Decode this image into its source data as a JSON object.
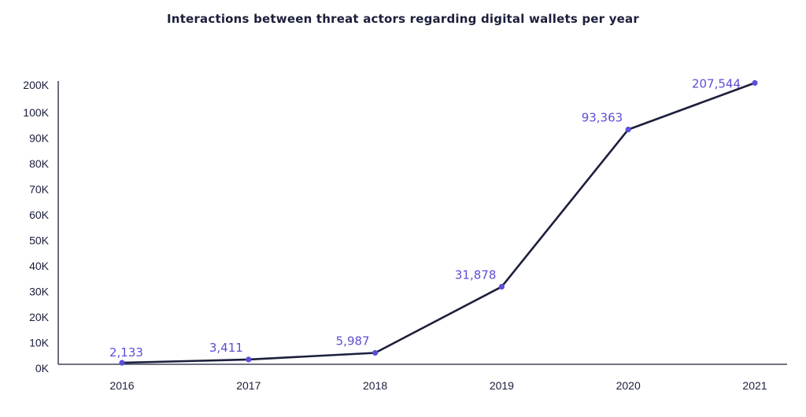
{
  "chart_data": {
    "type": "line",
    "title": "Interactions between threat actors regarding digital wallets per year",
    "xlabel": "",
    "ylabel": "",
    "x": [
      "2016",
      "2017",
      "2018",
      "2019",
      "2020",
      "2021"
    ],
    "values": [
      2133,
      3411,
      5987,
      31878,
      93363,
      207544
    ],
    "data_labels": [
      "2,133",
      "3,411",
      "5,987",
      "31,878",
      "93,363",
      "207,544"
    ],
    "y_ticks": [
      {
        "value": 0,
        "label": "0K"
      },
      {
        "value": 10000,
        "label": "10K"
      },
      {
        "value": 20000,
        "label": "20K"
      },
      {
        "value": 30000,
        "label": "30K"
      },
      {
        "value": 40000,
        "label": "40K"
      },
      {
        "value": 50000,
        "label": "50K"
      },
      {
        "value": 60000,
        "label": "60K"
      },
      {
        "value": 70000,
        "label": "70K"
      },
      {
        "value": 80000,
        "label": "80K"
      },
      {
        "value": 90000,
        "label": "90K"
      },
      {
        "value": 100000,
        "label": "100K"
      },
      {
        "value": 200000,
        "label": "200K"
      }
    ],
    "y_scale": "piecewise (0–100K linear, then compressed to 200K)",
    "grid": false,
    "legend": "none",
    "colors": {
      "line": "#1b1f3b",
      "marker": "#5b4fd6",
      "data_label": "#5b4fd6",
      "axis": "#1b1f3b",
      "text": "#1b1f3b"
    }
  }
}
